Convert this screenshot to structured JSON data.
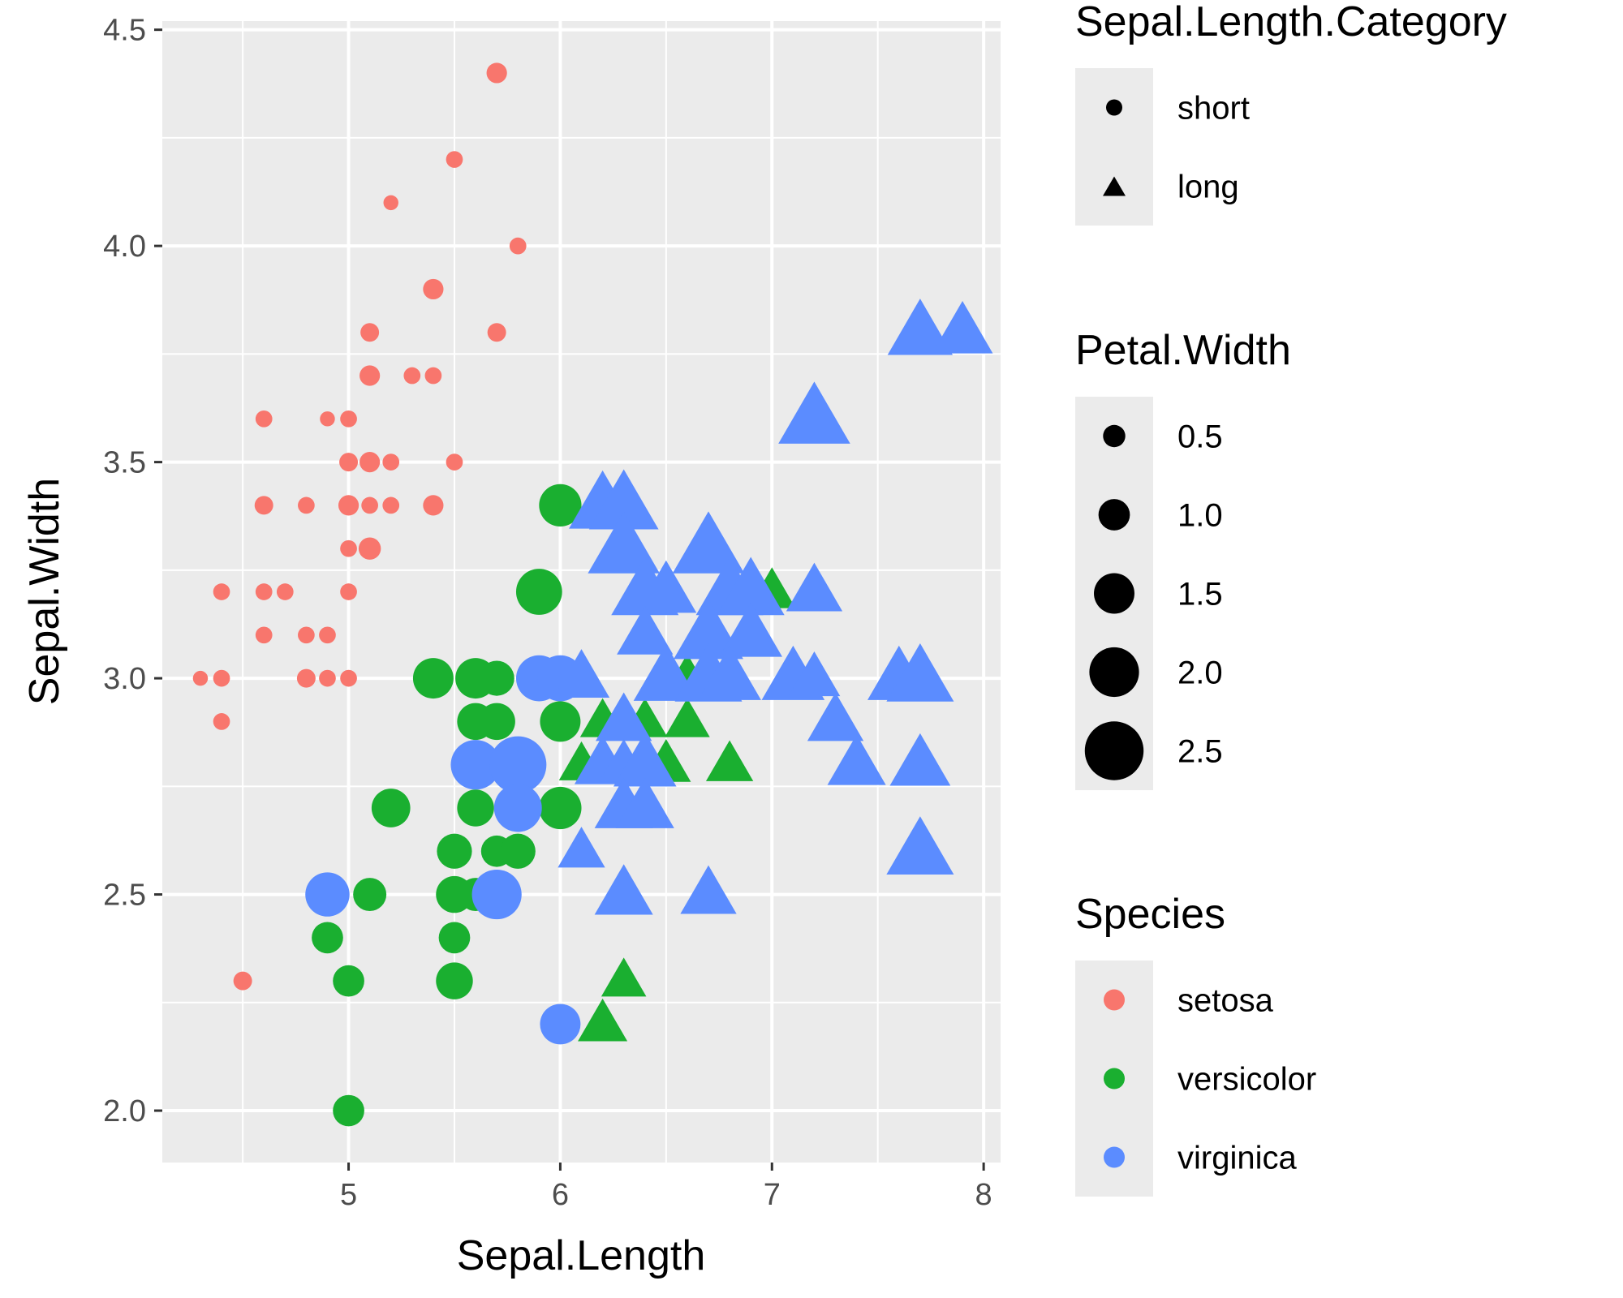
{
  "chart_data": {
    "type": "scatter",
    "xlabel": "Sepal.Length",
    "ylabel": "Sepal.Width",
    "xlim": [
      4.12,
      8.08
    ],
    "ylim": [
      1.88,
      4.52
    ],
    "x_ticks": [
      5,
      6,
      7,
      8
    ],
    "y_ticks": [
      2.0,
      2.5,
      3.0,
      3.5,
      4.0,
      4.5
    ],
    "x_tick_labels": [
      "5",
      "6",
      "7",
      "8"
    ],
    "y_tick_labels": [
      "2.0",
      "2.5",
      "3.0",
      "3.5",
      "4.0",
      "4.5"
    ],
    "grid": true,
    "legend_position": "right",
    "species_colors": {
      "setosa": "#F8766D",
      "versicolor": "#1AAF30",
      "virginica": "#5B8CFF"
    },
    "legends": [
      {
        "title": "Sepal.Length.Category",
        "kind": "shape",
        "entries": [
          {
            "label": "short",
            "shape": "circle"
          },
          {
            "label": "long",
            "shape": "triangle"
          }
        ]
      },
      {
        "title": "Petal.Width",
        "kind": "size",
        "entries": [
          {
            "label": "0.5",
            "value": 0.5
          },
          {
            "label": "1.0",
            "value": 1.0
          },
          {
            "label": "1.5",
            "value": 1.5
          },
          {
            "label": "2.0",
            "value": 2.0
          },
          {
            "label": "2.5",
            "value": 2.5
          }
        ]
      },
      {
        "title": "Species",
        "kind": "color",
        "entries": [
          {
            "label": "setosa",
            "color": "#F8766D"
          },
          {
            "label": "versicolor",
            "color": "#1AAF30"
          },
          {
            "label": "virginica",
            "color": "#5B8CFF"
          }
        ]
      }
    ],
    "series": [
      {
        "name": "setosa",
        "points": [
          [
            5.7,
            4.4,
            0.4
          ],
          [
            5.5,
            4.2,
            0.2
          ],
          [
            5.2,
            4.1,
            0.1
          ],
          [
            5.8,
            4.0,
            0.2
          ],
          [
            5.4,
            3.9,
            0.4
          ],
          [
            5.1,
            3.8,
            0.3
          ],
          [
            5.7,
            3.8,
            0.3
          ],
          [
            5.1,
            3.7,
            0.4
          ],
          [
            5.3,
            3.7,
            0.2
          ],
          [
            5.4,
            3.7,
            0.2
          ],
          [
            4.6,
            3.6,
            0.2
          ],
          [
            4.9,
            3.6,
            0.1
          ],
          [
            5.0,
            3.6,
            0.2
          ],
          [
            5.0,
            3.5,
            0.3
          ],
          [
            5.1,
            3.5,
            0.4
          ],
          [
            5.2,
            3.5,
            0.2
          ],
          [
            5.5,
            3.5,
            0.2
          ],
          [
            4.6,
            3.4,
            0.3
          ],
          [
            4.8,
            3.4,
            0.2
          ],
          [
            5.0,
            3.4,
            0.4
          ],
          [
            5.1,
            3.4,
            0.2
          ],
          [
            5.2,
            3.4,
            0.2
          ],
          [
            5.4,
            3.4,
            0.4
          ],
          [
            5.0,
            3.3,
            0.2
          ],
          [
            5.1,
            3.3,
            0.5
          ],
          [
            4.4,
            3.2,
            0.2
          ],
          [
            4.6,
            3.2,
            0.2
          ],
          [
            4.7,
            3.2,
            0.2
          ],
          [
            5.0,
            3.2,
            0.2
          ],
          [
            4.6,
            3.1,
            0.2
          ],
          [
            4.8,
            3.1,
            0.2
          ],
          [
            4.9,
            3.1,
            0.2
          ],
          [
            4.3,
            3.0,
            0.1
          ],
          [
            4.4,
            3.0,
            0.2
          ],
          [
            4.8,
            3.0,
            0.3
          ],
          [
            4.9,
            3.0,
            0.2
          ],
          [
            5.0,
            3.0,
            0.2
          ],
          [
            4.4,
            2.9,
            0.2
          ],
          [
            4.5,
            2.3,
            0.3
          ]
        ]
      },
      {
        "name": "versicolor",
        "points": [
          [
            6.0,
            3.4,
            1.6
          ],
          [
            5.9,
            3.2,
            1.8
          ],
          [
            5.4,
            3.0,
            1.5
          ],
          [
            5.6,
            3.0,
            1.5
          ],
          [
            5.7,
            3.0,
            1.2
          ],
          [
            6.1,
            3.0,
            1.4
          ],
          [
            5.6,
            2.9,
            1.3
          ],
          [
            5.7,
            2.9,
            1.3
          ],
          [
            6.0,
            2.9,
            1.5
          ],
          [
            5.2,
            2.7,
            1.4
          ],
          [
            5.6,
            2.7,
            1.3
          ],
          [
            5.8,
            2.7,
            1.0
          ],
          [
            6.0,
            2.7,
            1.6
          ],
          [
            5.5,
            2.6,
            1.2
          ],
          [
            5.7,
            2.6,
            1.0
          ],
          [
            5.8,
            2.6,
            1.2
          ],
          [
            5.1,
            2.5,
            1.1
          ],
          [
            5.5,
            2.5,
            1.3
          ],
          [
            5.6,
            2.5,
            1.1
          ],
          [
            4.9,
            2.4,
            1.0
          ],
          [
            5.5,
            2.4,
            1.0
          ],
          [
            5.0,
            2.3,
            1.0
          ],
          [
            5.5,
            2.3,
            1.3
          ],
          [
            5.0,
            2.0,
            1.0
          ],
          [
            6.9,
            3.1,
            1.5
          ],
          [
            7.0,
            3.2,
            1.4
          ],
          [
            6.7,
            3.1,
            1.4
          ],
          [
            6.6,
            3.0,
            1.4
          ],
          [
            6.4,
            2.9,
            1.3
          ],
          [
            6.6,
            2.9,
            1.3
          ],
          [
            6.2,
            2.9,
            1.3
          ],
          [
            6.1,
            2.8,
            1.3
          ],
          [
            6.8,
            2.8,
            1.4
          ],
          [
            6.5,
            2.8,
            1.5
          ],
          [
            6.3,
            2.3,
            1.3
          ],
          [
            6.2,
            2.2,
            1.5
          ]
        ]
      },
      {
        "name": "virginica",
        "points": [
          [
            5.6,
            2.8,
            2.0
          ],
          [
            5.8,
            2.8,
            2.4
          ],
          [
            5.8,
            2.7,
            1.9
          ],
          [
            4.9,
            2.5,
            1.7
          ],
          [
            5.7,
            2.5,
            2.0
          ],
          [
            5.9,
            3.0,
            1.8
          ],
          [
            6.0,
            3.0,
            1.8
          ],
          [
            6.0,
            2.2,
            1.5
          ],
          [
            7.7,
            3.8,
            2.2
          ],
          [
            7.9,
            3.8,
            2.0
          ],
          [
            7.2,
            3.6,
            2.5
          ],
          [
            6.2,
            3.4,
            2.3
          ],
          [
            6.3,
            3.4,
            2.4
          ],
          [
            6.3,
            3.3,
            2.5
          ],
          [
            6.7,
            3.3,
            2.5
          ],
          [
            6.4,
            3.2,
            2.3
          ],
          [
            6.5,
            3.2,
            2.0
          ],
          [
            6.8,
            3.2,
            2.3
          ],
          [
            6.9,
            3.2,
            2.3
          ],
          [
            7.2,
            3.2,
            1.8
          ],
          [
            6.4,
            3.1,
            1.8
          ],
          [
            6.7,
            3.1,
            2.4
          ],
          [
            6.9,
            3.1,
            2.1
          ],
          [
            6.5,
            3.0,
            2.2
          ],
          [
            6.7,
            3.0,
            2.3
          ],
          [
            6.8,
            3.0,
            2.1
          ],
          [
            7.1,
            3.0,
            2.1
          ],
          [
            7.2,
            3.0,
            1.6
          ],
          [
            7.6,
            3.0,
            2.1
          ],
          [
            7.7,
            3.0,
            2.3
          ],
          [
            6.1,
            3.0,
            1.8
          ],
          [
            6.3,
            2.9,
            1.8
          ],
          [
            7.3,
            2.9,
            1.8
          ],
          [
            6.2,
            2.8,
            1.8
          ],
          [
            6.3,
            2.8,
            1.5
          ],
          [
            6.4,
            2.8,
            2.1
          ],
          [
            7.4,
            2.8,
            1.9
          ],
          [
            7.7,
            2.8,
            2.0
          ],
          [
            6.3,
            2.7,
            1.9
          ],
          [
            6.4,
            2.7,
            1.9
          ],
          [
            6.1,
            2.6,
            1.4
          ],
          [
            7.7,
            2.6,
            2.3
          ],
          [
            6.3,
            2.5,
            1.9
          ],
          [
            6.7,
            2.5,
            1.8
          ]
        ]
      }
    ]
  }
}
